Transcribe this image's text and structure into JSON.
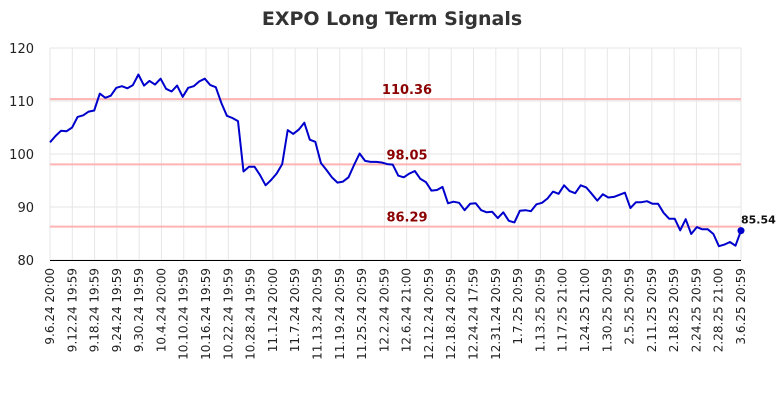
{
  "chart_data": {
    "type": "line",
    "title": "EXPO Long Term Signals",
    "ylim": [
      80,
      120
    ],
    "yticks": [
      80,
      90,
      100,
      110,
      120
    ],
    "grid": true,
    "x_tick_labels": [
      "9.6.24 20:00",
      "9.12.24 19:59",
      "9.18.24 19:59",
      "9.24.24 19:59",
      "9.30.24 19:59",
      "10.4.24 20:00",
      "10.10.24 19:59",
      "10.16.24 19:59",
      "10.22.24 19:59",
      "10.28.24 19:59",
      "11.1.24 20:00",
      "11.7.24 20:59",
      "11.13.24 20:59",
      "11.19.24 20:59",
      "11.25.24 20:59",
      "12.2.24 20:59",
      "12.6.24 21:00",
      "12.12.24 20:59",
      "12.18.24 20:59",
      "12.24.24 17:59",
      "12.31.24 20:59",
      "1.7.25 20:59",
      "1.13.25 20:59",
      "1.17.25 21:00",
      "1.24.25 21:00",
      "1.30.25 20:59",
      "2.5.25 20:59",
      "2.11.25 20:59",
      "2.18.25 20:59",
      "2.24.25 20:59",
      "2.28.25 21:00",
      "3.6.25 20:59"
    ],
    "reference_lines": [
      {
        "value": 110.36,
        "label": "110.36",
        "color": "#ffb3b3"
      },
      {
        "value": 98.05,
        "label": "98.05",
        "color": "#ffb3b3"
      },
      {
        "value": 86.29,
        "label": "86.29",
        "color": "#ffb3b3"
      }
    ],
    "series": [
      {
        "color": "#0000cc",
        "values": [
          102.2,
          103.4,
          104.4,
          104.3,
          105.0,
          107.0,
          107.3,
          108.0,
          108.2,
          111.4,
          110.6,
          111.0,
          112.5,
          112.8,
          112.4,
          113.0,
          115.0,
          112.9,
          113.8,
          113.1,
          114.2,
          112.3,
          111.8,
          112.9,
          110.8,
          112.5,
          112.8,
          113.7,
          114.2,
          113.0,
          112.6,
          109.6,
          107.2,
          106.8,
          106.2,
          96.7,
          97.6,
          97.6,
          96.0,
          94.1,
          95.1,
          96.3,
          98.1,
          104.5,
          103.8,
          104.6,
          105.9,
          102.7,
          102.3,
          98.3,
          97.0,
          95.6,
          94.6,
          94.8,
          95.6,
          97.9,
          100.1,
          98.7,
          98.5,
          98.5,
          98.4,
          98.1,
          98.0,
          95.9,
          95.6,
          96.3,
          96.8,
          95.3,
          94.7,
          93.1,
          93.2,
          93.8,
          90.7,
          91.0,
          90.8,
          89.4,
          90.6,
          90.7,
          89.4,
          89.0,
          89.1,
          87.9,
          89.0,
          87.4,
          87.1,
          89.3,
          89.4,
          89.2,
          90.5,
          90.8,
          91.6,
          92.9,
          92.5,
          94.1,
          93.0,
          92.6,
          94.1,
          93.7,
          92.5,
          91.2,
          92.4,
          91.8,
          91.9,
          92.3,
          92.7,
          89.8,
          90.9,
          90.9,
          91.1,
          90.6,
          90.6,
          88.9,
          87.8,
          87.8,
          85.6,
          87.7,
          84.9,
          86.2,
          85.8,
          85.8,
          84.9,
          82.6,
          82.9,
          83.4,
          82.7,
          85.54
        ]
      }
    ],
    "last_value": {
      "value": 85.54,
      "label": "85.54"
    }
  }
}
